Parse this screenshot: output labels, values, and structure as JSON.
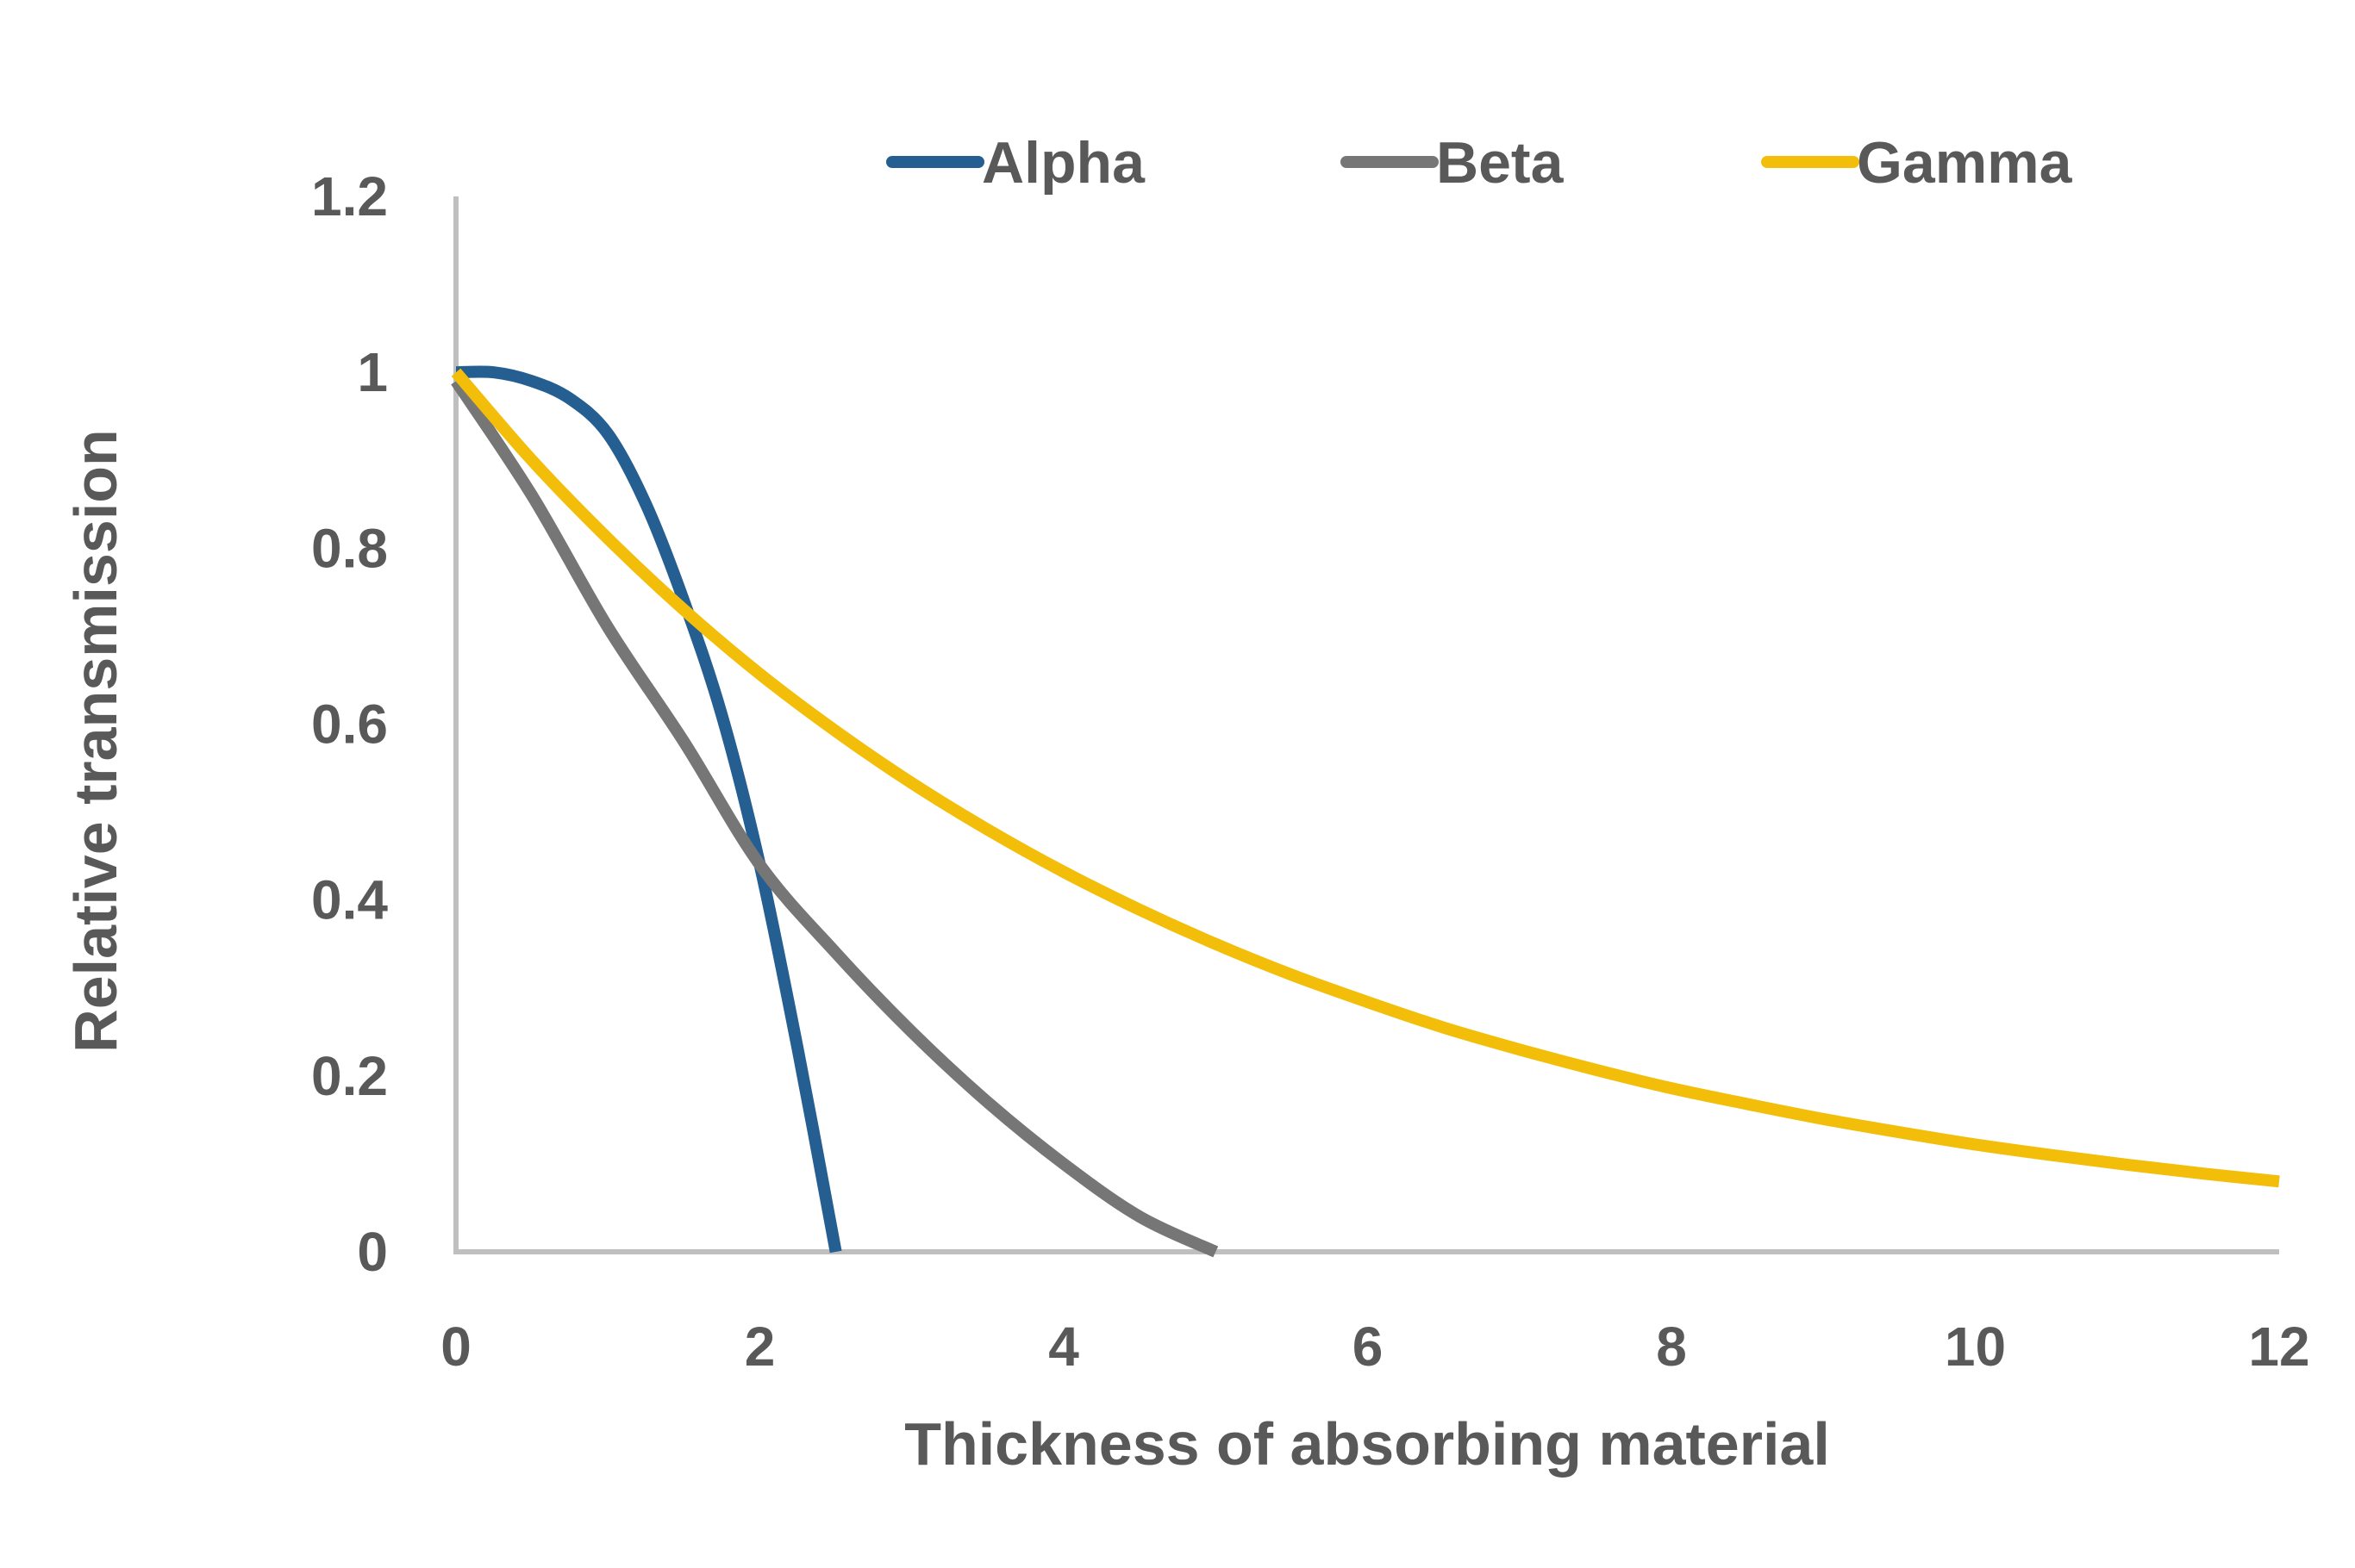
{
  "chart_data": {
    "type": "line",
    "title": "",
    "xlabel": "Thickness of absorbing material",
    "ylabel": "Relative transmission",
    "xlim": [
      0,
      12
    ],
    "ylim": [
      0,
      1.2
    ],
    "x_ticks": [
      "0",
      "2",
      "4",
      "6",
      "8",
      "10",
      "12"
    ],
    "y_ticks": [
      "0",
      "0.2",
      "0.4",
      "0.6",
      "0.8",
      "1",
      "1.2"
    ],
    "grid": false,
    "legend_position": "top",
    "series": [
      {
        "name": "Alpha",
        "color": "#255E91",
        "x": [
          0,
          0.25,
          0.5,
          0.75,
          1,
          1.25,
          1.5,
          1.75,
          2,
          2.25,
          2.5
        ],
        "y": [
          1,
          1,
          0.99,
          0.97,
          0.93,
          0.85,
          0.74,
          0.61,
          0.44,
          0.23,
          0
        ]
      },
      {
        "name": "Beta",
        "color": "#767676",
        "x": [
          0,
          0.5,
          1,
          1.5,
          2,
          2.5,
          3,
          3.5,
          4,
          4.5,
          5
        ],
        "y": [
          0.99,
          0.86,
          0.71,
          0.58,
          0.44,
          0.34,
          0.25,
          0.17,
          0.1,
          0.04,
          0
        ]
      },
      {
        "name": "Gamma",
        "color": "#F2BE0A",
        "x": [
          0,
          0.5,
          1,
          1.5,
          2,
          2.5,
          3,
          3.5,
          4,
          4.5,
          5,
          5.5,
          6,
          6.5,
          7,
          7.5,
          8,
          8.5,
          9,
          9.5,
          10,
          10.5,
          11,
          11.5,
          12
        ],
        "y": [
          1,
          0.9,
          0.811,
          0.73,
          0.657,
          0.592,
          0.533,
          0.48,
          0.432,
          0.389,
          0.35,
          0.315,
          0.284,
          0.255,
          0.23,
          0.207,
          0.186,
          0.168,
          0.151,
          0.136,
          0.122,
          0.11,
          0.099,
          0.089,
          0.08
        ]
      }
    ]
  }
}
